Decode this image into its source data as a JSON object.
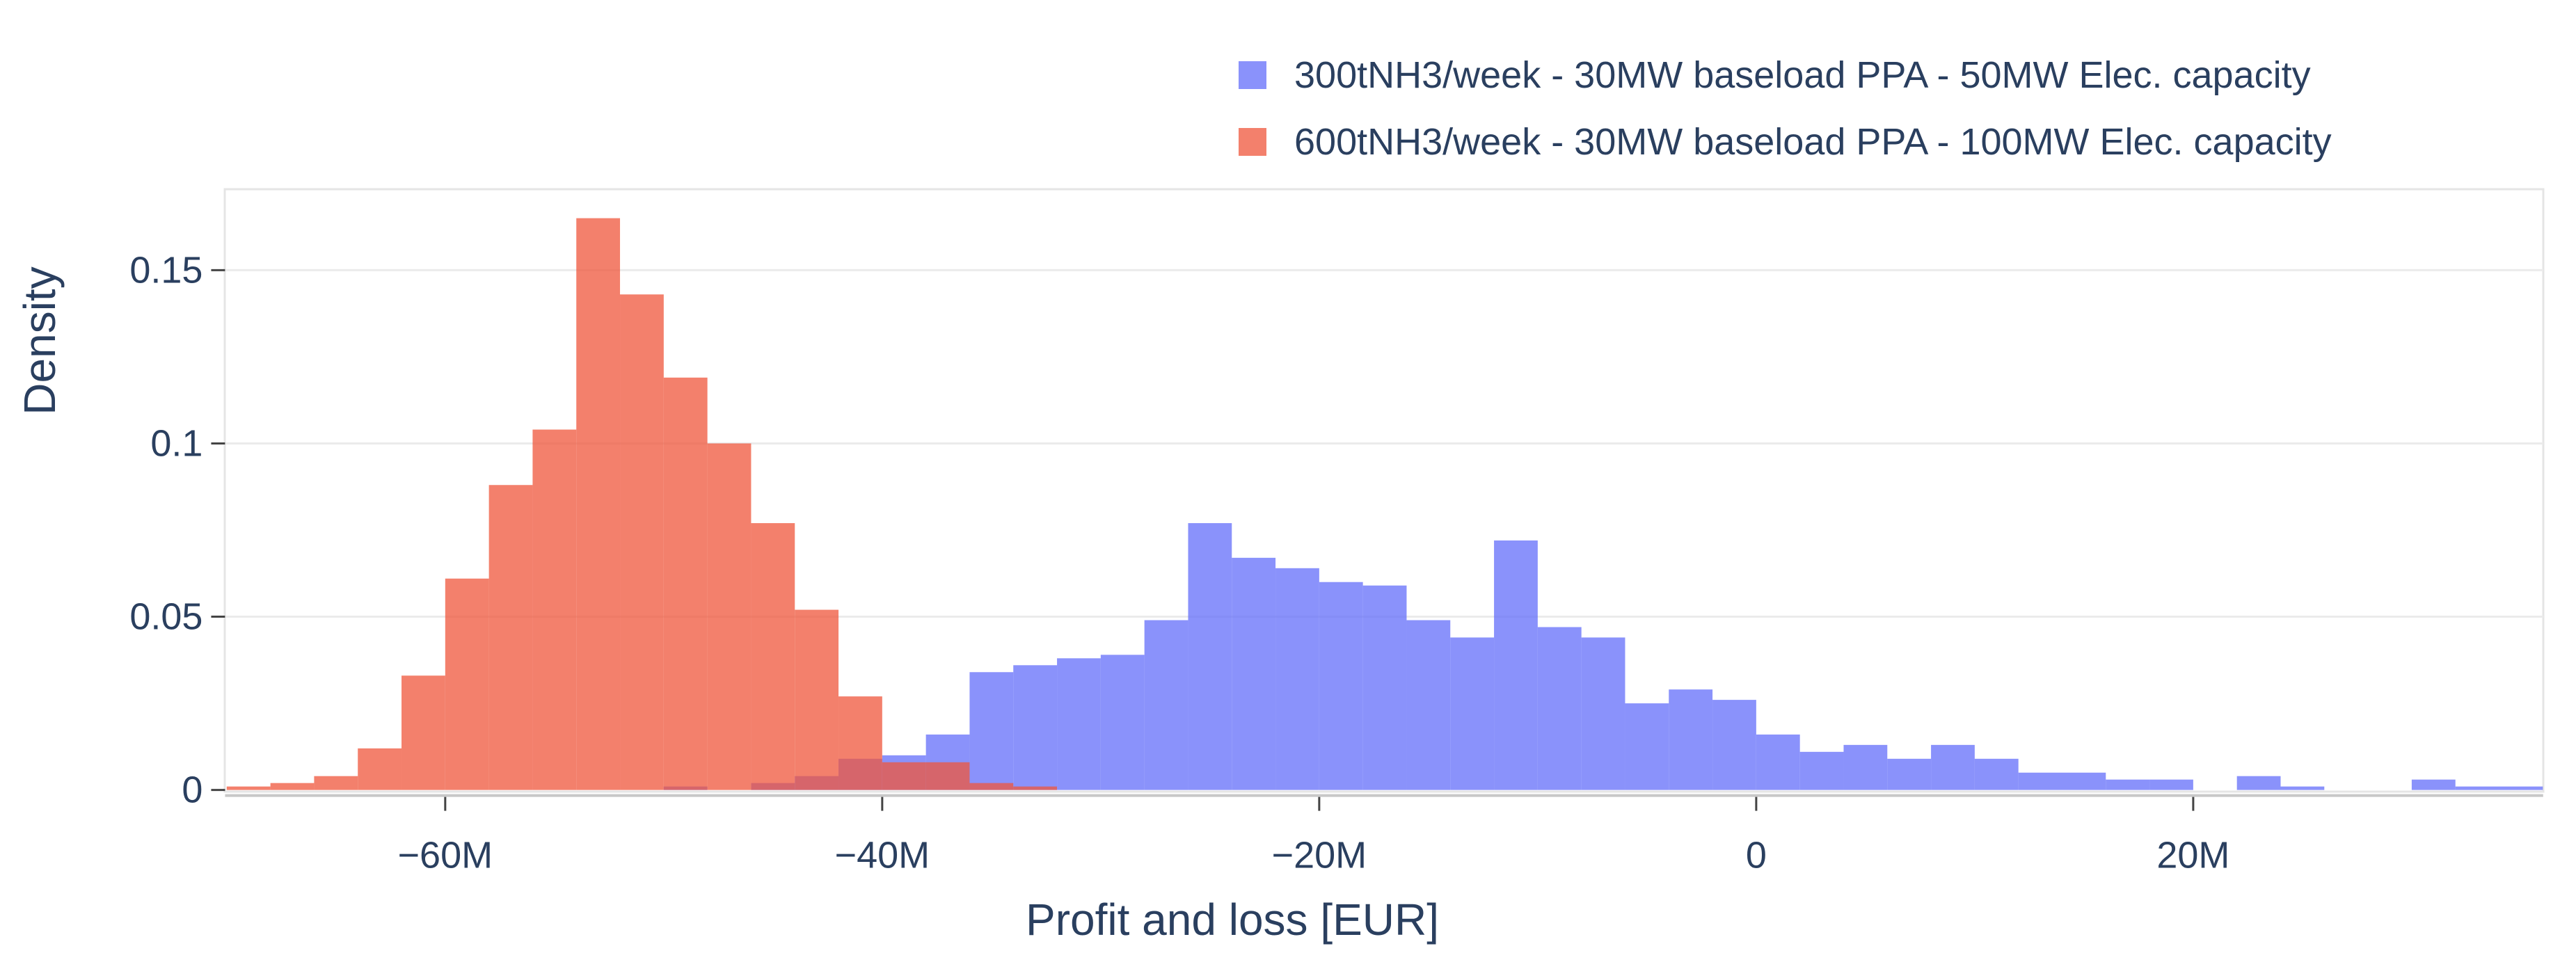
{
  "legend": {
    "items": [
      {
        "label": "300tNH3/week - 30MW baseload PPA - 50MW Elec. capacity",
        "color": "#636efa"
      },
      {
        "label": "600tNH3/week - 30MW baseload PPA - 100MW Elec. capacity",
        "color": "#ef553b"
      }
    ]
  },
  "axes": {
    "xlabel": "Profit and loss [EUR]",
    "ylabel": "Density",
    "xticks": [
      {
        "value": -60000000,
        "label": "−60M"
      },
      {
        "value": -40000000,
        "label": "−40M"
      },
      {
        "value": -20000000,
        "label": "−20M"
      },
      {
        "value": 0,
        "label": "0"
      },
      {
        "value": 20000000,
        "label": "20M"
      }
    ],
    "yticks": [
      {
        "value": 0,
        "label": "0"
      },
      {
        "value": 0.05,
        "label": "0.05"
      },
      {
        "value": 0.1,
        "label": "0.1"
      },
      {
        "value": 0.15,
        "label": "0.15"
      }
    ]
  },
  "chart_data": {
    "type": "bar",
    "subtype": "overlaid histogram",
    "title": "",
    "xlabel": "Profit and loss [EUR]",
    "ylabel": "Density",
    "xlim": [
      -70000000,
      35000000
    ],
    "ylim": [
      0,
      0.175
    ],
    "bin_width": 2000000,
    "grid": true,
    "legend_position": "top-right",
    "series": [
      {
        "name": "300tNH3/week - 30MW baseload PPA - 50MW Elec. capacity",
        "color": "#636efa",
        "opacity": 0.75,
        "bin_starts": [
          -50,
          -48,
          -46,
          -44,
          -42,
          -40,
          -38,
          -36,
          -34,
          -32,
          -30,
          -28,
          -26,
          -24,
          -22,
          -20,
          -18,
          -16,
          -14,
          -12,
          -10,
          -8,
          -6,
          -4,
          -2,
          0,
          2,
          4,
          6,
          8,
          10,
          12,
          14,
          16,
          18,
          20,
          22,
          24,
          26,
          28,
          30,
          32,
          34
        ],
        "bin_unit": "M EUR",
        "values": [
          0.001,
          0,
          0.002,
          0.004,
          0.009,
          0.01,
          0.016,
          0.034,
          0.036,
          0.038,
          0.039,
          0.049,
          0.077,
          0.067,
          0.064,
          0.06,
          0.059,
          0.049,
          0.044,
          0.072,
          0.047,
          0.044,
          0.025,
          0.029,
          0.026,
          0.016,
          0.011,
          0.013,
          0.009,
          0.013,
          0.009,
          0.005,
          0.005,
          0.003,
          0.003,
          0,
          0.004,
          0.001,
          0,
          0,
          0.003,
          0.001,
          0.001
        ]
      },
      {
        "name": "600tNH3/week - 30MW baseload PPA - 100MW Elec. capacity",
        "color": "#ef553b",
        "opacity": 0.75,
        "bin_starts": [
          -70,
          -68,
          -66,
          -64,
          -62,
          -60,
          -58,
          -56,
          -54,
          -52,
          -50,
          -48,
          -46,
          -44,
          -42,
          -40,
          -38,
          -36,
          -34
        ],
        "bin_unit": "M EUR",
        "values": [
          0.001,
          0.002,
          0.004,
          0.012,
          0.033,
          0.061,
          0.088,
          0.104,
          0.165,
          0.143,
          0.119,
          0.1,
          0.077,
          0.052,
          0.027,
          0.008,
          0.008,
          0.002,
          0.001
        ]
      }
    ]
  },
  "colors": {
    "text": "#2a3f5f",
    "grid": "#ebebeb",
    "axis": "#c8c8c8",
    "background": "#ffffff"
  }
}
